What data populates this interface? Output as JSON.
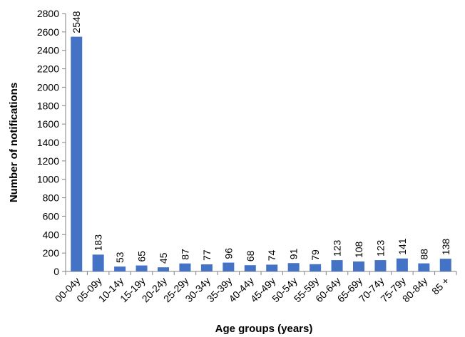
{
  "chart_data": {
    "type": "bar",
    "title": "",
    "xlabel": "Age groups (years)",
    "ylabel": "Number of notifications",
    "categories": [
      "00-04y",
      "05-09y",
      "10-14y",
      "15-19y",
      "20-24y",
      "25-29y",
      "30-34y",
      "35-39y",
      "40-44y",
      "45-49y",
      "50-54y",
      "55-59y",
      "60-64y",
      "65-69y",
      "70-74y",
      "75-79y",
      "80-84y",
      "85 +"
    ],
    "values": [
      2548,
      183,
      53,
      65,
      45,
      87,
      77,
      96,
      68,
      74,
      91,
      79,
      123,
      108,
      123,
      141,
      88,
      138
    ],
    "ylim": [
      0,
      2800
    ],
    "yticks": [
      0,
      200,
      400,
      600,
      800,
      1000,
      1200,
      1400,
      1600,
      1800,
      2000,
      2200,
      2400,
      2600,
      2800
    ],
    "grid": false,
    "legend": "none",
    "bar_color": "#4472C4",
    "axis_color": "#808080"
  }
}
